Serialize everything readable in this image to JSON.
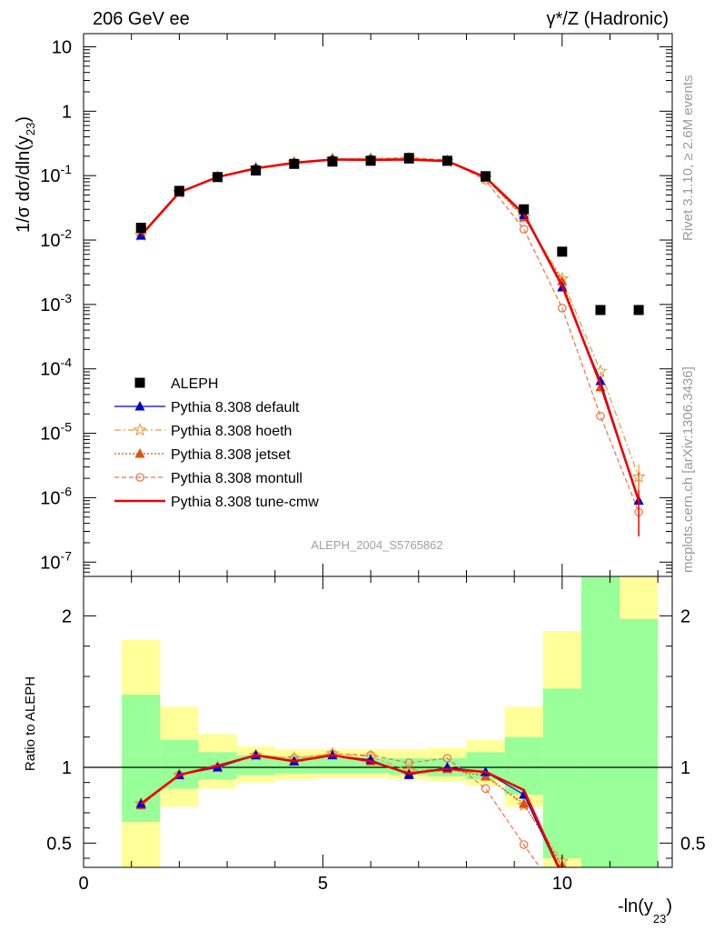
{
  "header": {
    "left": "206 GeV ee",
    "right_prefix": "γ*/Z",
    "right_suffix": " (Hadronic)"
  },
  "side": {
    "rivet": "Rivet 3.1.10, ≥ 2.6M events",
    "mcplots": "mcplots.cern.ch [arXiv:1306.3436]"
  },
  "analysis_name": "ALEPH_2004_S5765862",
  "colors": {
    "band_inner": "#99ff99",
    "band_outer": "#ffff99",
    "data": "#000000",
    "default": "#0000cc",
    "hoeth": "#e0a040",
    "jetset": "#e05010",
    "montull": "#f07040",
    "tune_cmw": "#ee0000"
  },
  "chart_data": [
    {
      "type": "line",
      "panel": "main",
      "ylabel_parts": [
        "1/σ  dσ/dln(y",
        "23",
        ")"
      ],
      "xlim": [
        0,
        12.3
      ],
      "ylim": [
        6e-08,
        16
      ],
      "yscale": "log",
      "grid": false,
      "legend_position": "lower-left",
      "y_tick_labels": [
        "10",
        "1",
        "10^-1",
        "10^-2",
        "10^-3",
        "10^-4",
        "10^-5",
        "10^-6",
        "10^-7"
      ],
      "x": [
        1.2,
        2.0,
        2.8,
        3.6,
        4.4,
        5.2,
        6.0,
        6.8,
        7.6,
        8.4,
        9.2,
        10.0,
        10.8,
        11.6
      ],
      "bin_edges": [
        0.8,
        1.6,
        2.4,
        3.2,
        4.0,
        4.8,
        5.6,
        6.4,
        7.2,
        8.0,
        8.8,
        9.6,
        10.4,
        11.2,
        12.0
      ],
      "series": [
        {
          "name": "ALEPH",
          "style": "data",
          "values": [
            0.0155,
            0.058,
            0.095,
            0.12,
            0.152,
            0.165,
            0.17,
            0.188,
            0.17,
            0.098,
            0.03,
            0.0066,
            0.00082,
            0.00082
          ]
        },
        {
          "name": "Pythia 8.308 default",
          "style": "default",
          "values": [
            0.0118,
            0.055,
            0.095,
            0.13,
            0.158,
            0.178,
            0.178,
            0.178,
            0.17,
            0.094,
            0.0246,
            0.00185,
            6.5e-05,
            9e-07
          ]
        },
        {
          "name": "Pythia 8.308 hoeth",
          "style": "hoeth",
          "values": [
            0.0118,
            0.055,
            0.095,
            0.13,
            0.16,
            0.18,
            0.182,
            0.185,
            0.168,
            0.092,
            0.0225,
            0.0025,
            9.2e-05,
            2.1e-06
          ]
        },
        {
          "name": "Pythia 8.308 jetset",
          "style": "jetset",
          "values": [
            0.0117,
            0.055,
            0.095,
            0.13,
            0.158,
            0.178,
            0.176,
            0.18,
            0.168,
            0.092,
            0.0225,
            0.0023,
            5.2e-05,
            9e-07
          ]
        },
        {
          "name": "Pythia 8.308 montull",
          "style": "montull",
          "values": [
            0.0117,
            0.055,
            0.095,
            0.13,
            0.16,
            0.18,
            0.183,
            0.19,
            0.175,
            0.085,
            0.0148,
            0.00088,
            1.85e-05,
            6e-07
          ]
        },
        {
          "name": "Pythia 8.308 tune-cmw",
          "style": "tune_cmw",
          "values": [
            0.0118,
            0.055,
            0.095,
            0.13,
            0.158,
            0.178,
            0.176,
            0.178,
            0.168,
            0.094,
            0.0255,
            0.00195,
            5.8e-05,
            9e-07
          ]
        }
      ]
    },
    {
      "type": "line",
      "panel": "ratio",
      "ylabel": "Ratio to ALEPH",
      "xlabel_parts": [
        "-ln(y",
        "23",
        ")"
      ],
      "xlim": [
        0,
        12.3
      ],
      "ylim": [
        0.34,
        2.26
      ],
      "reference": 1,
      "x_tick_labels": [
        "0",
        "5",
        "10"
      ],
      "y_tick_labels": [
        "0.5",
        "1",
        "2"
      ],
      "bands": {
        "green": [
          [
            0.64,
            1.48
          ],
          [
            0.86,
            1.18
          ],
          [
            0.92,
            1.1
          ],
          [
            0.95,
            1.08
          ],
          [
            0.96,
            1.07
          ],
          [
            0.96,
            1.06
          ],
          [
            0.96,
            1.06
          ],
          [
            0.95,
            1.06
          ],
          [
            0.94,
            1.06
          ],
          [
            0.92,
            1.1
          ],
          [
            0.82,
            1.2
          ],
          [
            0.4,
            1.52
          ],
          [
            0.3,
            2.4
          ],
          [
            0.3,
            1.98
          ]
        ],
        "yellow": [
          [
            0.3,
            1.84
          ],
          [
            0.74,
            1.4
          ],
          [
            0.86,
            1.22
          ],
          [
            0.9,
            1.14
          ],
          [
            0.92,
            1.12
          ],
          [
            0.93,
            1.12
          ],
          [
            0.93,
            1.12
          ],
          [
            0.92,
            1.12
          ],
          [
            0.91,
            1.13
          ],
          [
            0.88,
            1.18
          ],
          [
            0.74,
            1.4
          ],
          [
            0.2,
            1.9
          ],
          [
            0.2,
            2.5
          ],
          [
            0.1,
            2.5
          ]
        ]
      },
      "series": [
        {
          "name": "Pythia 8.308 default",
          "style": "default",
          "values": [
            0.76,
            0.95,
            1.0,
            1.08,
            1.04,
            1.08,
            1.05,
            0.95,
            1.0,
            0.97,
            0.82,
            0.28
          ]
        },
        {
          "name": "Pythia 8.308 hoeth",
          "style": "hoeth",
          "values": [
            0.76,
            0.95,
            1.0,
            1.08,
            1.06,
            1.09,
            1.07,
            0.98,
            0.99,
            0.95,
            0.75,
            0.38
          ]
        },
        {
          "name": "Pythia 8.308 jetset",
          "style": "jetset",
          "values": [
            0.75,
            0.95,
            1.0,
            1.08,
            1.04,
            1.08,
            1.04,
            0.96,
            0.99,
            0.94,
            0.76,
            0.35
          ]
        },
        {
          "name": "Pythia 8.308 montull",
          "style": "montull",
          "values": [
            0.75,
            0.95,
            1.0,
            1.08,
            1.06,
            1.09,
            1.08,
            1.03,
            1.06,
            0.86,
            0.49,
            0.13
          ]
        },
        {
          "name": "Pythia 8.308 tune-cmw",
          "style": "tune_cmw",
          "values": [
            0.76,
            0.95,
            1.01,
            1.08,
            1.04,
            1.08,
            1.04,
            0.96,
            0.99,
            0.97,
            0.85,
            0.29
          ]
        }
      ]
    }
  ]
}
